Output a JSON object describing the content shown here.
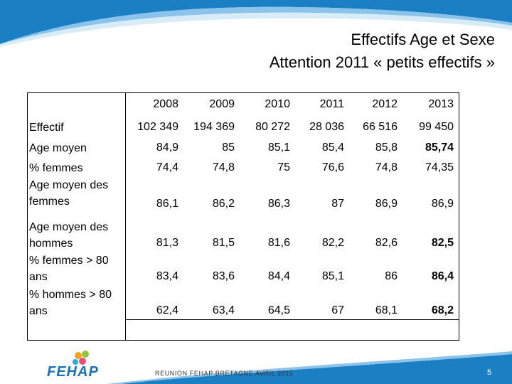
{
  "slide": {
    "title_line1": "Effectifs Age et Sexe",
    "title_line2": "Attention 2011 « petits effectifs »",
    "footer": "REUNION FEHAP BRETAGNE AVRIL 2015",
    "page_number": "5",
    "logo_text": "FEHAP"
  },
  "colors": {
    "accent": "#1b7fc4",
    "text": "#000000"
  },
  "table": {
    "years": [
      "2008",
      "2009",
      "2010",
      "2011",
      "2012",
      "2013"
    ],
    "rows": [
      {
        "label": "Effectif",
        "values": [
          "102 349",
          "194 369",
          "80 272",
          "28 036",
          "66 516",
          "99 450"
        ]
      },
      {
        "label": "Age moyen",
        "values": [
          "84,9",
          "85",
          "85,1",
          "85,4",
          "85,8",
          "85,74"
        ]
      },
      {
        "label": "% femmes",
        "values": [
          "74,4",
          "74,8",
          "75",
          "76,6",
          "74,8",
          "74,35"
        ]
      },
      {
        "label": "Age moyen des femmes",
        "values": [
          "86,1",
          "86,2",
          "86,3",
          "87",
          "86,9",
          "86,9"
        ]
      },
      {
        "label": "Age moyen des hommes",
        "values": [
          "81,3",
          "81,5",
          "81,6",
          "82,2",
          "82,6",
          "82,5"
        ]
      },
      {
        "label": "% femmes > 80 ans",
        "values": [
          "83,4",
          "83,6",
          "84,4",
          "85,1",
          "86",
          "86,4"
        ]
      },
      {
        "label": "% hommes > 80 ans",
        "values": [
          "62,4",
          "63,4",
          "64,5",
          "67",
          "68,1",
          "68,2"
        ]
      }
    ]
  }
}
